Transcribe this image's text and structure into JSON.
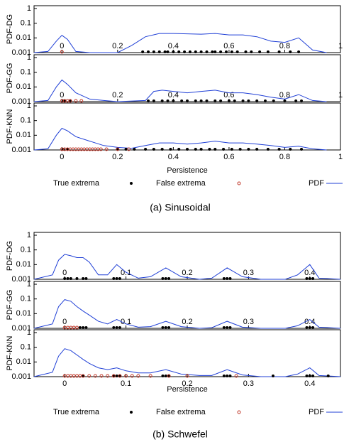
{
  "chart_data": [
    {
      "type": "line",
      "caption": "(a)  Sinusoidal",
      "xlabel": "Persistence",
      "log_y": true,
      "xlim": [
        -0.1,
        1
      ],
      "xticks": [
        0,
        0.2,
        0.4,
        0.6,
        0.8,
        1
      ],
      "ylim": [
        0.001,
        1
      ],
      "yticks": [
        0.001,
        0.01,
        0.1,
        1
      ],
      "series": [
        {
          "name": "True extrema",
          "color": "#000000",
          "marker": "dot"
        },
        {
          "name": "False extrema",
          "color": "#c0392b",
          "marker": "circle"
        },
        {
          "name": "PDF",
          "color": "#1f3fd6",
          "marker": "line"
        }
      ],
      "panels": [
        {
          "ylabel": "PDF-DG",
          "true_extrema": [
            0.29,
            0.31,
            0.33,
            0.35,
            0.37,
            0.38,
            0.4,
            0.42,
            0.44,
            0.46,
            0.48,
            0.5,
            0.52,
            0.54,
            0.55,
            0.57,
            0.59,
            0.61,
            0.63,
            0.66,
            0.68,
            0.71,
            0.74,
            0.78,
            0.82,
            0.85
          ],
          "false_extrema": [
            0
          ],
          "pdf": {
            "x": [
              -0.1,
              -0.05,
              -0.02,
              0,
              0.02,
              0.05,
              0.1,
              0.2,
              0.25,
              0.3,
              0.35,
              0.4,
              0.5,
              0.55,
              0.6,
              0.65,
              0.7,
              0.75,
              0.8,
              0.85,
              0.9,
              0.95
            ],
            "values": [
              0.001,
              0.0012,
              0.006,
              0.015,
              0.008,
              0.0012,
              0.001,
              0.001,
              0.003,
              0.012,
              0.02,
              0.02,
              0.018,
              0.02,
              0.016,
              0.016,
              0.012,
              0.006,
              0.005,
              0.01,
              0.0015,
              0.001
            ]
          }
        },
        {
          "ylabel": "PDF-GG",
          "true_extrema": [
            0.005,
            0.01,
            0.03,
            0.31,
            0.33,
            0.36,
            0.38,
            0.4,
            0.43,
            0.45,
            0.48,
            0.5,
            0.52,
            0.55,
            0.57,
            0.6,
            0.62,
            0.65,
            0.67,
            0.7,
            0.73,
            0.76,
            0.8,
            0.84,
            0.86
          ],
          "false_extrema": [
            0,
            0.01,
            0.02,
            0.03,
            0.05,
            0.07
          ],
          "pdf": {
            "x": [
              -0.1,
              -0.05,
              -0.02,
              0,
              0.02,
              0.05,
              0.1,
              0.15,
              0.2,
              0.3,
              0.33,
              0.36,
              0.4,
              0.45,
              0.5,
              0.55,
              0.6,
              0.65,
              0.7,
              0.75,
              0.8,
              0.85,
              0.9,
              0.95
            ],
            "values": [
              0.001,
              0.0012,
              0.01,
              0.03,
              0.015,
              0.004,
              0.0015,
              0.0012,
              0.001,
              0.0012,
              0.005,
              0.006,
              0.005,
              0.004,
              0.005,
              0.006,
              0.004,
              0.004,
              0.003,
              0.002,
              0.0015,
              0.003,
              0.0012,
              0.001
            ]
          }
        },
        {
          "ylabel": "PDF-KNN",
          "true_extrema": [
            0.005,
            0.02,
            0.2,
            0.23,
            0.26,
            0.3,
            0.33,
            0.36,
            0.39,
            0.42,
            0.45,
            0.48,
            0.5,
            0.53,
            0.55,
            0.58,
            0.61,
            0.64,
            0.67,
            0.7,
            0.74,
            0.78,
            0.82,
            0.86
          ],
          "false_extrema": [
            0,
            0.01,
            0.02,
            0.03,
            0.04,
            0.05,
            0.06,
            0.07,
            0.08,
            0.09,
            0.1,
            0.11,
            0.12,
            0.13,
            0.14,
            0.16,
            0.2,
            0.24
          ],
          "pdf": {
            "x": [
              -0.1,
              -0.05,
              -0.02,
              0,
              0.02,
              0.05,
              0.1,
              0.15,
              0.2,
              0.25,
              0.3,
              0.35,
              0.4,
              0.45,
              0.5,
              0.55,
              0.6,
              0.65,
              0.7,
              0.75,
              0.8,
              0.85,
              0.9,
              0.95
            ],
            "values": [
              0.001,
              0.0012,
              0.01,
              0.03,
              0.02,
              0.008,
              0.004,
              0.002,
              0.0015,
              0.0013,
              0.002,
              0.003,
              0.003,
              0.0025,
              0.003,
              0.004,
              0.003,
              0.003,
              0.0025,
              0.002,
              0.0015,
              0.0018,
              0.0012,
              0.001
            ]
          }
        }
      ]
    },
    {
      "type": "line",
      "caption": "(b)  Schwefel",
      "xlabel": "Persistence",
      "log_y": true,
      "xlim": [
        -0.05,
        0.45
      ],
      "xticks": [
        0,
        0.1,
        0.2,
        0.3,
        0.4
      ],
      "ylim": [
        0.001,
        1
      ],
      "yticks": [
        0.001,
        0.01,
        0.1,
        1
      ],
      "series": [
        {
          "name": "True extrema",
          "color": "#000000",
          "marker": "dot"
        },
        {
          "name": "False extrema",
          "color": "#c0392b",
          "marker": "circle"
        },
        {
          "name": "PDF",
          "color": "#1f3fd6",
          "marker": "line"
        }
      ],
      "panels": [
        {
          "ylabel": "PDF-DG",
          "true_extrema": [
            0,
            0.005,
            0.01,
            0.02,
            0.03,
            0.035,
            0.08,
            0.085,
            0.09,
            0.16,
            0.165,
            0.17,
            0.26,
            0.265,
            0.27,
            0.395,
            0.4,
            0.405
          ],
          "false_extrema": [],
          "pdf": {
            "x": [
              -0.05,
              -0.02,
              -0.01,
              0,
              0.01,
              0.02,
              0.03,
              0.04,
              0.055,
              0.07,
              0.085,
              0.1,
              0.12,
              0.14,
              0.165,
              0.19,
              0.22,
              0.24,
              0.265,
              0.29,
              0.32,
              0.36,
              0.38,
              0.4,
              0.415,
              0.45
            ],
            "values": [
              0.001,
              0.002,
              0.02,
              0.05,
              0.04,
              0.03,
              0.03,
              0.015,
              0.002,
              0.002,
              0.01,
              0.003,
              0.0012,
              0.0015,
              0.006,
              0.0015,
              0.001,
              0.0012,
              0.006,
              0.0015,
              0.001,
              0.001,
              0.002,
              0.01,
              0.0012,
              0.001
            ]
          }
        },
        {
          "ylabel": "PDF-GG",
          "true_extrema": [
            0.025,
            0.03,
            0.035,
            0.08,
            0.085,
            0.09,
            0.16,
            0.165,
            0.17,
            0.26,
            0.265,
            0.27,
            0.395,
            0.4,
            0.405
          ],
          "false_extrema": [
            0,
            0.005,
            0.01,
            0.015,
            0.02
          ],
          "pdf": {
            "x": [
              -0.05,
              -0.02,
              -0.01,
              0,
              0.01,
              0.02,
              0.03,
              0.04,
              0.055,
              0.07,
              0.085,
              0.1,
              0.12,
              0.14,
              0.165,
              0.19,
              0.22,
              0.24,
              0.265,
              0.29,
              0.32,
              0.36,
              0.38,
              0.4,
              0.415,
              0.45
            ],
            "values": [
              0.001,
              0.002,
              0.03,
              0.09,
              0.07,
              0.03,
              0.015,
              0.008,
              0.003,
              0.002,
              0.004,
              0.002,
              0.0012,
              0.0013,
              0.003,
              0.0013,
              0.001,
              0.0011,
              0.003,
              0.0012,
              0.001,
              0.001,
              0.0015,
              0.004,
              0.0012,
              0.001
            ]
          }
        },
        {
          "ylabel": "PDF-KNN",
          "true_extrema": [
            0.03,
            0.08,
            0.085,
            0.09,
            0.16,
            0.165,
            0.17,
            0.26,
            0.265,
            0.27,
            0.34,
            0.395,
            0.4,
            0.405,
            0.43
          ],
          "false_extrema": [
            0,
            0.005,
            0.01,
            0.015,
            0.02,
            0.025,
            0.03,
            0.04,
            0.05,
            0.06,
            0.07,
            0.08,
            0.09,
            0.1,
            0.11,
            0.12,
            0.14,
            0.17,
            0.2,
            0.28
          ],
          "pdf": {
            "x": [
              -0.05,
              -0.02,
              -0.01,
              0,
              0.01,
              0.02,
              0.03,
              0.04,
              0.055,
              0.07,
              0.085,
              0.1,
              0.12,
              0.14,
              0.165,
              0.19,
              0.22,
              0.24,
              0.265,
              0.29,
              0.32,
              0.36,
              0.38,
              0.4,
              0.415,
              0.45
            ],
            "values": [
              0.001,
              0.002,
              0.025,
              0.08,
              0.06,
              0.03,
              0.015,
              0.008,
              0.004,
              0.003,
              0.004,
              0.0025,
              0.0018,
              0.0018,
              0.003,
              0.0015,
              0.0012,
              0.0012,
              0.003,
              0.0013,
              0.001,
              0.001,
              0.0015,
              0.004,
              0.0012,
              0.001
            ]
          }
        }
      ]
    }
  ]
}
